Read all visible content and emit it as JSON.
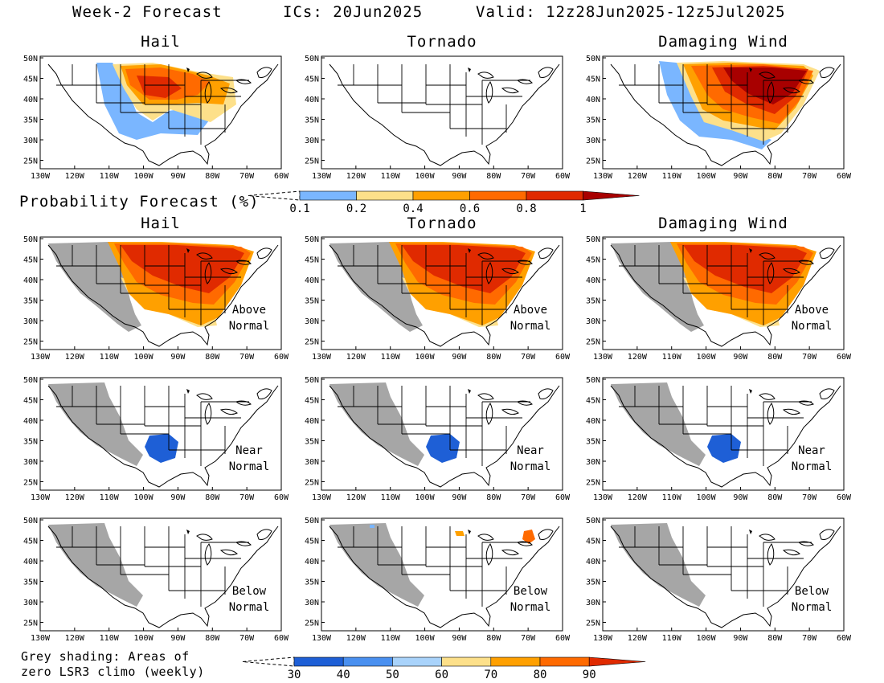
{
  "header": {
    "title": "Week-2 Forecast",
    "ics": "ICs: 20Jun2025",
    "valid": "Valid: 12z28Jun2025-12z5Jul2025"
  },
  "row1_headers": [
    "Hail",
    "Tornado",
    "Damaging Wind"
  ],
  "row2_headers": [
    "Hail",
    "Tornado",
    "Damaging Wind"
  ],
  "probability_label": "Probability Forecast (%)",
  "grey_note_line1": "Grey shading: Areas of",
  "grey_note_line2": "zero LSR3 climo (weekly)",
  "lat_ticks": [
    "50N",
    "45N",
    "40N",
    "35N",
    "30N",
    "25N"
  ],
  "lon_ticks": [
    "130W",
    "120W",
    "110W",
    "100W",
    "90W",
    "80W",
    "70W",
    "60W"
  ],
  "row_notes": [
    {
      "line1": "",
      "line2": ""
    },
    {
      "line1": "Above",
      "line2": "Normal"
    },
    {
      "line1": "Near",
      "line2": "Normal"
    },
    {
      "line1": "Below",
      "line2": "Normal"
    }
  ],
  "colorbar_top": {
    "labels": [
      "0.1",
      "0.2",
      "0.4",
      "0.6",
      "0.8",
      "1"
    ],
    "colors": [
      "#7ab6ff",
      "#fde08a",
      "#ffa000",
      "#ff6a00",
      "#e02a00",
      "#a80000"
    ]
  },
  "colorbar_bottom": {
    "labels": [
      "30",
      "40",
      "50",
      "60",
      "70",
      "80",
      "90"
    ],
    "colors": [
      "#1e5fd6",
      "#4a90f0",
      "#a9d3fb",
      "#fde08a",
      "#ffa000",
      "#ff6a00",
      "#e02a00"
    ]
  },
  "colors": {
    "grey": "#a6a6a6",
    "pale_blue": "#7ab6ff",
    "light_yellow": "#fde08a",
    "orange": "#ffa000",
    "red_orange": "#ff6a00",
    "red": "#e02a00",
    "dark_red": "#a80000",
    "blue": "#1e5fd6"
  }
}
